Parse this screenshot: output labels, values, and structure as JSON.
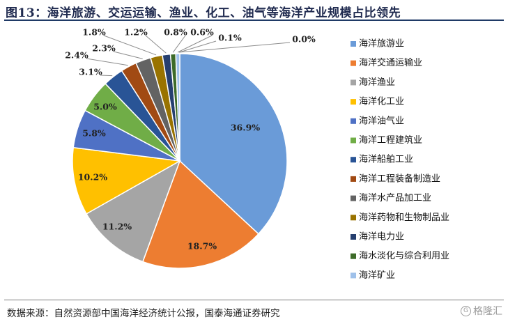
{
  "title": "图13：海洋旅游、交运运输、渔业、化工、油气等海洋产业规模占比领先",
  "source": "数据来源：自然资源部中国海洋经济统计公报，国泰海通证券研究",
  "watermark": "格隆汇",
  "chart_data": {
    "type": "pie",
    "categories": [
      "海洋旅游业",
      "海洋交通运输业",
      "海洋渔业",
      "海洋化工业",
      "海洋油气业",
      "海洋工程建筑业",
      "海洋船舶工业",
      "海洋工程装备制造业",
      "海洋水产品加工业",
      "海洋药物和生物制品业",
      "海洋电力业",
      "海水淡化与综合利用业",
      "海洋矿业"
    ],
    "values": [
      36.9,
      18.7,
      11.2,
      10.2,
      5.8,
      5.0,
      3.1,
      2.4,
      2.3,
      1.8,
      1.2,
      0.8,
      0.6
    ],
    "labels": [
      "36.9%",
      "18.7%",
      "11.2%",
      "10.2%",
      "5.8%",
      "5.0%",
      "3.1%",
      "2.4%",
      "2.3%",
      "1.8%",
      "1.2%",
      "0.8%",
      "0.6%"
    ],
    "extra_labels": [
      "0.1%",
      "0.0%"
    ],
    "colors": [
      "#6a9bd8",
      "#ed7d31",
      "#a5a5a5",
      "#ffc000",
      "#4f71c5",
      "#70ad47",
      "#295496",
      "#a14a13",
      "#636363",
      "#997300",
      "#263f6f",
      "#3d6b29",
      "#9fc1ea"
    ],
    "legend_position": "right"
  }
}
